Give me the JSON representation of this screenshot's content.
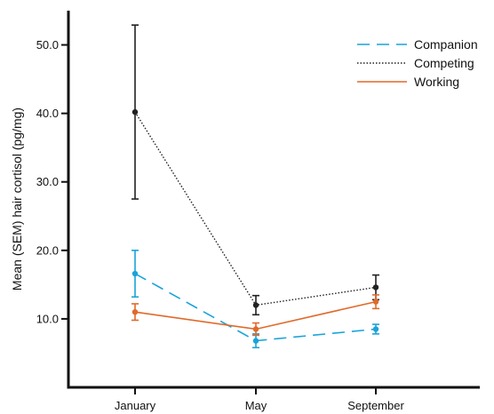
{
  "chart_data": {
    "type": "line",
    "title": "",
    "xlabel": "",
    "ylabel": "Mean (SEM) hair cortisol (pg/mg)",
    "categories": [
      "January",
      "May",
      "September"
    ],
    "ylim": [
      0,
      55
    ],
    "yticks": [
      "10.0",
      "20.0",
      "30.0",
      "40.0",
      "50.0"
    ],
    "ytick_values": [
      10,
      20,
      30,
      40,
      50
    ],
    "grid": false,
    "legend_position": "top-right",
    "series": [
      {
        "name": "Companion",
        "color": "#1aa3d9",
        "line_style": "dashed",
        "values": [
          16.6,
          6.8,
          8.5
        ],
        "err_low": [
          13.2,
          5.8,
          7.8
        ],
        "err_high": [
          20.0,
          7.8,
          9.2
        ]
      },
      {
        "name": "Competing",
        "color": "#222222",
        "line_style": "dotted",
        "values": [
          40.2,
          12.0,
          14.6
        ],
        "err_low": [
          27.5,
          10.6,
          12.8
        ],
        "err_high": [
          52.9,
          13.4,
          16.4
        ]
      },
      {
        "name": "Working",
        "color": "#e06a2a",
        "line_style": "solid",
        "values": [
          11.0,
          8.5,
          12.5
        ],
        "err_low": [
          9.8,
          7.6,
          11.5
        ],
        "err_high": [
          12.2,
          9.4,
          13.5
        ]
      }
    ]
  }
}
